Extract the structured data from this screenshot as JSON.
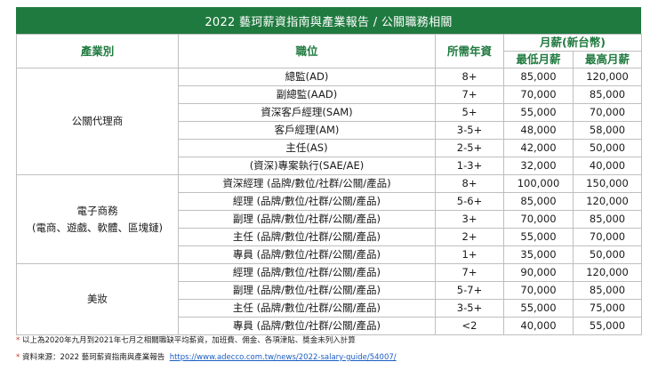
{
  "title": "2022 藝珂薪資指南與產業報告 / 公關職務相關",
  "headers": {
    "industry": "產業別",
    "position": "職位",
    "experience": "所需年資",
    "monthly_salary": "月薪(新台幣)",
    "min_salary": "最低月薪",
    "max_salary": "最高月薪"
  },
  "groups": [
    {
      "industry_lines": [
        "公關代理商"
      ],
      "rows": [
        {
          "position": "總監(AD)",
          "experience": "8+",
          "min": "85,000",
          "max": "120,000"
        },
        {
          "position": "副總監(AAD)",
          "experience": "7+",
          "min": "70,000",
          "max": "85,000"
        },
        {
          "position": "資深客戶經理(SAM)",
          "experience": "5+",
          "min": "55,000",
          "max": "70,000"
        },
        {
          "position": "客戶經理(AM)",
          "experience": "3-5+",
          "min": "48,000",
          "max": "58,000"
        },
        {
          "position": "主任(AS)",
          "experience": "2-5+",
          "min": "42,000",
          "max": "50,000"
        },
        {
          "position": "(資深)專案執行(SAE/AE)",
          "experience": "1-3+",
          "min": "32,000",
          "max": "40,000"
        }
      ]
    },
    {
      "industry_lines": [
        "電子商務",
        "(電商、遊戲、軟體、區塊鏈)"
      ],
      "rows": [
        {
          "position": "資深經理 (品牌/數位/社群/公關/產品)",
          "experience": "8+",
          "min": "100,000",
          "max": "150,000"
        },
        {
          "position": "經理 (品牌/數位/社群/公關/產品)",
          "experience": "5-6+",
          "min": "85,000",
          "max": "120,000"
        },
        {
          "position": "副理 (品牌/數位/社群/公關/產品)",
          "experience": "3+",
          "min": "70,000",
          "max": "85,000"
        },
        {
          "position": "主任 (品牌/數位/社群/公關/產品)",
          "experience": "2+",
          "min": "55,000",
          "max": "70,000"
        },
        {
          "position": "專員 (品牌/數位/社群/公關/產品)",
          "experience": "1+",
          "min": "35,000",
          "max": "50,000"
        }
      ]
    },
    {
      "industry_lines": [
        "美妝"
      ],
      "rows": [
        {
          "position": "經理 (品牌/數位/社群/公關/產品)",
          "experience": "7+",
          "min": "90,000",
          "max": "120,000"
        },
        {
          "position": "副理 (品牌/數位/社群/公關/產品)",
          "experience": "5-7+",
          "min": "70,000",
          "max": "85,000"
        },
        {
          "position": "主任 (品牌/數位/社群/公關/產品)",
          "experience": "3-5+",
          "min": "55,000",
          "max": "75,000"
        },
        {
          "position": "專員 (品牌/數位/社群/公關/產品)",
          "experience": "<2",
          "min": "40,000",
          "max": "55,000"
        }
      ]
    }
  ],
  "footnotes": {
    "note_mark": "*",
    "note": "以上為2020年九月到2021年七月之相關職缺平均薪資，加班費、佣金、各項津貼、獎金未列入計算",
    "source_mark": "*",
    "source_label": "資料來源：2022 藝珂薪資指南與產業報告",
    "source_url": "https://www.adecco.com.tw/news/2022-salary-guide/54007/"
  }
}
